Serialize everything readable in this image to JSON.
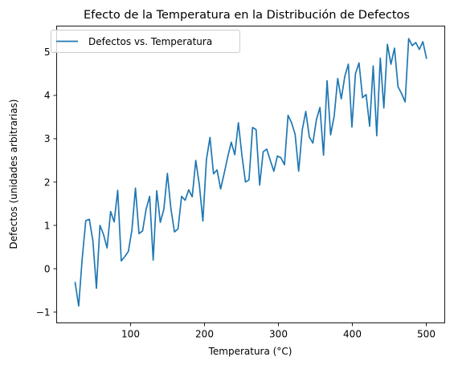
{
  "chart_data": {
    "type": "line",
    "title": "Efecto de la Temperatura en la Distribución de Defectos",
    "xlabel": "Temperatura (°C)",
    "ylabel": "Defectos (unidades arbitrarias)",
    "xlim": [
      0,
      525
    ],
    "ylim": [
      -1.25,
      5.6
    ],
    "xticks": [
      100,
      200,
      300,
      400,
      500
    ],
    "yticks": [
      -1,
      0,
      1,
      2,
      3,
      4,
      5
    ],
    "grid": false,
    "legend": "top-left",
    "series": [
      {
        "name": "Defectos vs. Temperatura",
        "color": "#1f77b4",
        "x": [
          25,
          29.8,
          34.6,
          39.4,
          44.2,
          49,
          53.8,
          58.6,
          63.4,
          68.2,
          73,
          77.8,
          82.6,
          87.4,
          92.2,
          97,
          101.8,
          106.6,
          111.4,
          116.2,
          121,
          125.8,
          130.6,
          135.4,
          140.2,
          145,
          149.8,
          154.6,
          159.4,
          164.2,
          169,
          173.8,
          178.6,
          183.4,
          188.2,
          193,
          197.8,
          202.6,
          207.4,
          212.2,
          217,
          221.8,
          226.6,
          231.4,
          236.2,
          241,
          245.8,
          250.6,
          255.4,
          260.2,
          265,
          269.8,
          274.6,
          279.4,
          284.2,
          289,
          293.8,
          298.6,
          303.4,
          308.2,
          313,
          317.8,
          322.6,
          327.4,
          332.2,
          337,
          341.8,
          346.6,
          351.4,
          356.2,
          361,
          365.8,
          370.6,
          375.4,
          380.2,
          385,
          389.8,
          394.6,
          399.4,
          404.2,
          409,
          413.8,
          418.6,
          423.4,
          428.2,
          433,
          437.8,
          442.6,
          447.4,
          452.2,
          457,
          461.8,
          466.6,
          471.4,
          476.2,
          481,
          485.8,
          490.6,
          495.4,
          500.2
        ],
        "y": [
          -0.32,
          -0.86,
          0.24,
          1.11,
          1.14,
          0.65,
          -0.45,
          1.0,
          0.79,
          0.48,
          1.32,
          1.08,
          1.81,
          0.18,
          0.28,
          0.4,
          0.89,
          1.86,
          0.81,
          0.87,
          1.37,
          1.67,
          0.2,
          1.8,
          1.07,
          1.37,
          2.2,
          1.38,
          0.85,
          0.92,
          1.67,
          1.58,
          1.82,
          1.66,
          2.5,
          1.94,
          1.1,
          2.52,
          3.03,
          2.19,
          2.28,
          1.84,
          2.2,
          2.58,
          2.92,
          2.63,
          3.37,
          2.62,
          2.0,
          2.05,
          3.26,
          3.21,
          1.93,
          2.7,
          2.76,
          2.5,
          2.25,
          2.6,
          2.56,
          2.4,
          3.54,
          3.37,
          3.1,
          2.25,
          3.2,
          3.63,
          3.04,
          2.9,
          3.44,
          3.72,
          2.62,
          4.34,
          3.09,
          3.52,
          4.39,
          3.92,
          4.44,
          4.72,
          3.27,
          4.5,
          4.75,
          3.95,
          4.02,
          3.29,
          4.68,
          3.07,
          4.86,
          3.71,
          5.18,
          4.72,
          5.09,
          4.2,
          4.04,
          3.85,
          5.31,
          5.15,
          5.22,
          5.06,
          5.24,
          4.86
        ]
      }
    ]
  }
}
